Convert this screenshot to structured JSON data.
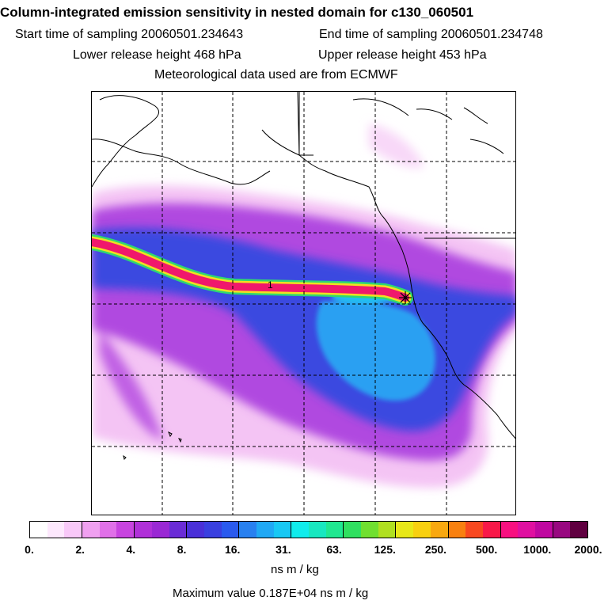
{
  "header": {
    "title": "Column-integrated emission sensitivity in nested domain for c130_060501",
    "start_sampling": "Start time of sampling 20060501.234643",
    "end_sampling": "End time of sampling 20060501.234748",
    "lower_release": "Lower release height  468 hPa",
    "upper_release": "Upper release height  453 hPa",
    "met_data": "Meteorological data used are from ECMWF"
  },
  "map": {
    "release_marker": "release-point-star",
    "plume_label": "1"
  },
  "colorbar": {
    "colors": [
      "#ffffff",
      "#fde8fd",
      "#f8c8f8",
      "#f0a0f0",
      "#e070e8",
      "#c844e0",
      "#b030d8",
      "#9a28d4",
      "#6a2cd6",
      "#4a30d8",
      "#3a40e0",
      "#2a5aee",
      "#2880f0",
      "#20a8f4",
      "#18c8f4",
      "#10ecec",
      "#18e8c0",
      "#20e890",
      "#30e060",
      "#70e030",
      "#b0e020",
      "#e8e818",
      "#f8d010",
      "#f8a810",
      "#f88010",
      "#f84820",
      "#f81848",
      "#f81080",
      "#e010a0",
      "#c008a0",
      "#980880",
      "#600040"
    ],
    "tick_labels": [
      "0.",
      "2.",
      "4.",
      "8.",
      "16.",
      "31.",
      "63.",
      "125.",
      "250.",
      "500.",
      "1000.",
      "2000."
    ],
    "units": "ns m / kg"
  },
  "footer": {
    "max_value": "Maximum value  0.187E+04 ns m / kg"
  }
}
